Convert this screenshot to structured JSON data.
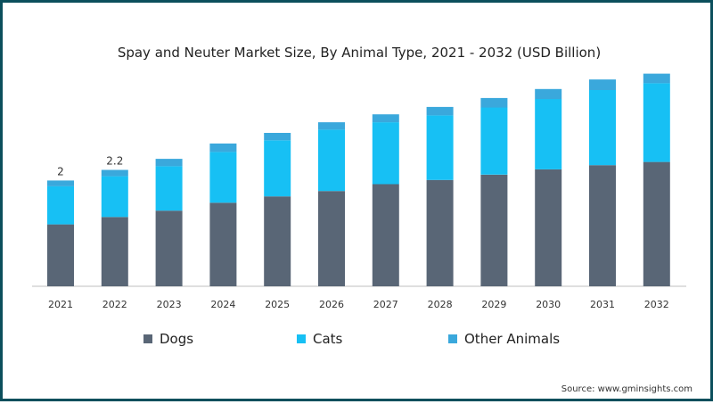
{
  "chart_data": {
    "type": "bar",
    "stacked": true,
    "title": "Spay and Neuter Market Size, By Animal Type, 2021 - 2032 (USD Billion)",
    "xlabel": "",
    "ylabel": "",
    "categories": [
      "2021",
      "2022",
      "2023",
      "2024",
      "2025",
      "2026",
      "2027",
      "2028",
      "2029",
      "2030",
      "2031",
      "2032"
    ],
    "ylim": [
      0,
      4.35
    ],
    "grid": false,
    "legend_position": "bottom",
    "series": [
      {
        "name": "Dogs",
        "color": "#596676",
        "values": [
          1.17,
          1.31,
          1.43,
          1.58,
          1.7,
          1.8,
          1.93,
          2.01,
          2.11,
          2.21,
          2.29,
          2.35
        ]
      },
      {
        "name": "Cats",
        "color": "#17c0f4",
        "values": [
          0.72,
          0.77,
          0.84,
          0.96,
          1.06,
          1.16,
          1.17,
          1.22,
          1.27,
          1.33,
          1.42,
          1.49
        ]
      },
      {
        "name": "Other Animals",
        "color": "#3aa8dc",
        "values": [
          0.11,
          0.12,
          0.14,
          0.16,
          0.14,
          0.14,
          0.15,
          0.16,
          0.18,
          0.19,
          0.2,
          0.18
        ]
      }
    ],
    "data_labels": [
      {
        "category": "2021",
        "text": "2"
      },
      {
        "category": "2022",
        "text": "2.2"
      }
    ]
  },
  "source": "Source: www.gminsights.com"
}
